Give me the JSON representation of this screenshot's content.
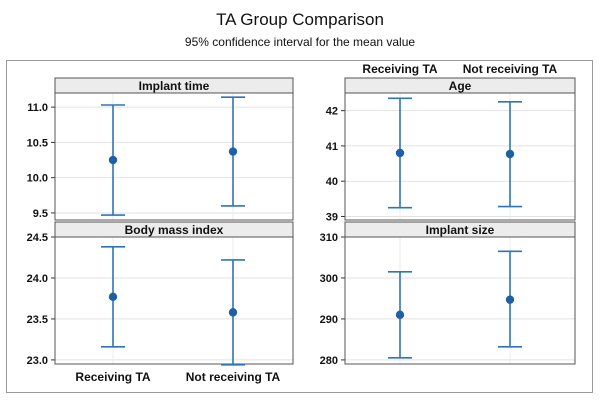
{
  "figure": {
    "title": "TA Group Comparison",
    "subtitle": "95% confidence interval for the mean value"
  },
  "chart_data": {
    "type": "scatter",
    "subtype": "interval plot (mean with 95% CI error bars)",
    "categories": [
      "Receiving TA",
      "Not receiving TA"
    ],
    "grid": "horizontal gridlines",
    "marker_color": "#1f5fa6",
    "line_color": "#2e75b6",
    "panels": [
      {
        "title": "Implant time",
        "ylim": [
          9.4,
          11.2
        ],
        "yticks": [
          "9.5",
          "10.0",
          "10.5",
          "11.0"
        ],
        "means": [
          10.25,
          10.37
        ],
        "lower": [
          9.47,
          9.6
        ],
        "upper": [
          11.03,
          11.14
        ]
      },
      {
        "title": "Age",
        "ylim": [
          38.9,
          42.5
        ],
        "yticks": [
          "39",
          "40",
          "41",
          "42"
        ],
        "means": [
          40.8,
          40.77
        ],
        "lower": [
          39.25,
          39.28
        ],
        "upper": [
          42.35,
          42.25
        ]
      },
      {
        "title": "Body mass index",
        "ylim": [
          22.95,
          24.5
        ],
        "yticks": [
          "23.0",
          "23.5",
          "24.0",
          "24.5"
        ],
        "means": [
          23.77,
          23.58
        ],
        "lower": [
          23.16,
          22.94
        ],
        "upper": [
          24.38,
          24.22
        ]
      },
      {
        "title": "Implant size",
        "ylim": [
          279,
          310
        ],
        "yticks": [
          "280",
          "290",
          "300",
          "310"
        ],
        "means": [
          291,
          294.7
        ],
        "lower": [
          280.5,
          283.2
        ],
        "upper": [
          301.5,
          306.5
        ]
      }
    ]
  }
}
